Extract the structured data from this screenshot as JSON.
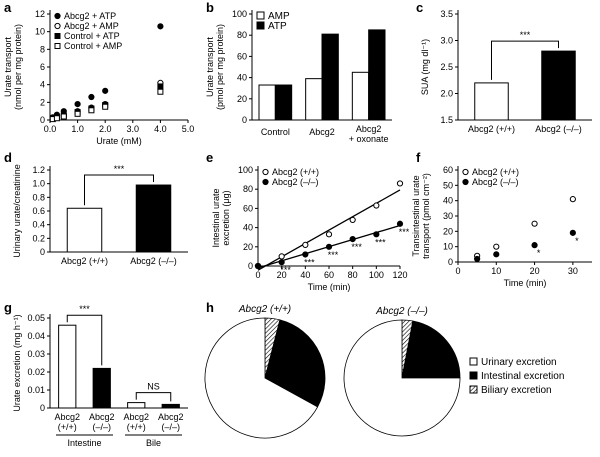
{
  "chart_data": [
    {
      "type": "scatter",
      "panel": "a",
      "xlabel": "Urate (mM)",
      "ylabel": "Urate transport (nmol per mg protein)",
      "xlim": [
        0,
        5
      ],
      "xticks": [
        {
          "value": 0,
          "label": "0.0"
        },
        {
          "value": 1,
          "label": "1.0"
        },
        {
          "value": 2,
          "label": "2.0"
        },
        {
          "value": 3,
          "label": "3.0"
        },
        {
          "value": 4,
          "label": "4.0"
        },
        {
          "value": 5,
          "label": "5.0"
        }
      ],
      "ylim": [
        0,
        12
      ],
      "yticks": [
        0,
        2,
        4,
        6,
        8,
        10,
        12
      ],
      "legend": "upper left",
      "series": [
        {
          "name": "Abcg2 + ATP",
          "color": "#000000",
          "marker": "circle",
          "filled": true,
          "x": [
            0.1,
            0.25,
            0.5,
            1,
            1.5,
            2,
            4
          ],
          "values": [
            0.3,
            0.6,
            1.0,
            1.8,
            2.6,
            3.3,
            10.6
          ]
        },
        {
          "name": "Abcg2 + AMP",
          "color": "#000000",
          "marker": "circle",
          "filled": false,
          "x": [
            0.1,
            0.25,
            0.5,
            1,
            1.5,
            2,
            4
          ],
          "values": [
            0.2,
            0.3,
            0.5,
            1.0,
            1.4,
            1.8,
            4.2
          ]
        },
        {
          "name": "Control + ATP",
          "color": "#000000",
          "marker": "square",
          "filled": true,
          "x": [
            0.1,
            0.25,
            0.5,
            1,
            1.5,
            2,
            4
          ],
          "values": [
            0.2,
            0.3,
            0.5,
            0.9,
            1.3,
            1.7,
            3.8
          ]
        },
        {
          "name": "Control + AMP",
          "color": "#000000",
          "marker": "square",
          "filled": false,
          "x": [
            0.1,
            0.25,
            0.5,
            1,
            1.5,
            2,
            4
          ],
          "values": [
            0.1,
            0.2,
            0.4,
            0.7,
            1.1,
            1.5,
            3.2
          ]
        }
      ]
    },
    {
      "type": "bar",
      "panel": "b",
      "ylabel": "Urate transport (pmol per mg protein)",
      "categories": [
        "Control",
        "Abcg2",
        "Abcg2 + oxonate"
      ],
      "ylim": [
        0,
        100
      ],
      "yticks": [
        0,
        20,
        40,
        60,
        80,
        100
      ],
      "legend": "upper left",
      "series": [
        {
          "name": "AMP",
          "color": "#ffffff",
          "values": [
            33,
            39,
            45
          ]
        },
        {
          "name": "ATP",
          "color": "#000000",
          "values": [
            33,
            81,
            85
          ]
        }
      ]
    },
    {
      "type": "bar",
      "panel": "c",
      "ylabel": "SUA (mg dl⁻¹)",
      "categories": [
        "Abcg2 (+/+)",
        "Abcg2 (–/–)"
      ],
      "values": [
        2.2,
        2.8
      ],
      "colors": [
        "#ffffff",
        "#000000"
      ],
      "ylim": [
        1.5,
        3.5
      ],
      "yticks": [
        1.5,
        {
          "value": 2,
          "label": "2.0"
        },
        2.5,
        {
          "value": 3,
          "label": "3.0"
        },
        3.5
      ],
      "annotations": [
        "***"
      ]
    },
    {
      "type": "bar",
      "panel": "d",
      "ylabel": "Urinary urate/creatinine",
      "categories": [
        "Abcg2 (+/+)",
        "Abcg2 (–/–)"
      ],
      "values": [
        0.64,
        0.98
      ],
      "colors": [
        "#ffffff",
        "#000000"
      ],
      "ylim": [
        0,
        1.2
      ],
      "yticks": [
        0,
        0.2,
        0.4,
        0.6,
        0.8,
        {
          "value": 1,
          "label": "1.0"
        },
        1.2
      ],
      "annotations": [
        "***"
      ]
    },
    {
      "type": "scatter",
      "panel": "e",
      "xlabel": "Time (min)",
      "ylabel": "Intestinal urate excretion (μg)",
      "fit": true,
      "xlim": [
        0,
        120
      ],
      "xticks": [
        0,
        20,
        40,
        60,
        80,
        100,
        120
      ],
      "ylim": [
        0,
        100
      ],
      "yticks": [
        0,
        20,
        40,
        60,
        80,
        100
      ],
      "legend": "upper left",
      "series": [
        {
          "name": "Abcg2 (+/+)",
          "color": "#000000",
          "marker": "circle",
          "filled": false,
          "x": [
            0,
            20,
            40,
            60,
            80,
            100,
            120
          ],
          "values": [
            0,
            10,
            22,
            33,
            48,
            63,
            86
          ]
        },
        {
          "name": "Abcg2 (–/–)",
          "color": "#000000",
          "marker": "circle",
          "filled": true,
          "x": [
            0,
            20,
            40,
            60,
            80,
            100,
            120
          ],
          "values": [
            0,
            4,
            12,
            20,
            28,
            33,
            44
          ]
        }
      ],
      "annotations": [
        "***",
        "***",
        "***",
        "***",
        "***",
        "***"
      ]
    },
    {
      "type": "scatter",
      "panel": "f",
      "xlabel": "Time (min)",
      "ylabel": "Transintestinal urate transport (pmol cm⁻²)",
      "xlim": [
        0,
        35
      ],
      "xticks": [
        0,
        10,
        20,
        30
      ],
      "ylim": [
        0,
        60
      ],
      "yticks": [
        0,
        10,
        20,
        30,
        40,
        50,
        60
      ],
      "legend": "upper left",
      "series": [
        {
          "name": "Abcg2 (+/+)",
          "color": "#000000",
          "marker": "circle",
          "filled": false,
          "x": [
            5,
            10,
            20,
            30
          ],
          "values": [
            4,
            10,
            25,
            41
          ]
        },
        {
          "name": "Abcg2 (–/–)",
          "color": "#000000",
          "marker": "circle",
          "filled": true,
          "x": [
            5,
            10,
            20,
            30
          ],
          "values": [
            2,
            5,
            11,
            19
          ]
        }
      ],
      "annotations": [
        "*",
        "*"
      ]
    },
    {
      "type": "bar",
      "panel": "g",
      "ylabel": "Urate excretion (mg h⁻¹)",
      "categories": [
        "Abcg2 (+/+)",
        "Abcg2 (–/–)",
        "Abcg2 (+/+)",
        "Abcg2 (–/–)"
      ],
      "groups": [
        "Intestine",
        "Bile"
      ],
      "values": [
        0.046,
        0.022,
        0.003,
        0.002
      ],
      "colors": [
        "#ffffff",
        "#000000",
        "#ffffff",
        "#000000"
      ],
      "ylim": [
        0,
        0.05
      ],
      "yticks": [
        0,
        0.01,
        0.02,
        0.03,
        0.04,
        0.05
      ],
      "annotations": [
        "***",
        "NS"
      ]
    },
    {
      "type": "pie",
      "panel": "h",
      "labels": [
        "Urinary excretion",
        "Intestinal excretion",
        "Biliary excretion"
      ],
      "colors": [
        "#ffffff",
        "#000000",
        "hatch"
      ],
      "pies": [
        {
          "title": "Abcg2 (+/+)",
          "values": [
            67,
            29,
            4
          ]
        },
        {
          "title": "Abcg2 (–/–)",
          "values": [
            75,
            22,
            3
          ]
        }
      ]
    }
  ]
}
